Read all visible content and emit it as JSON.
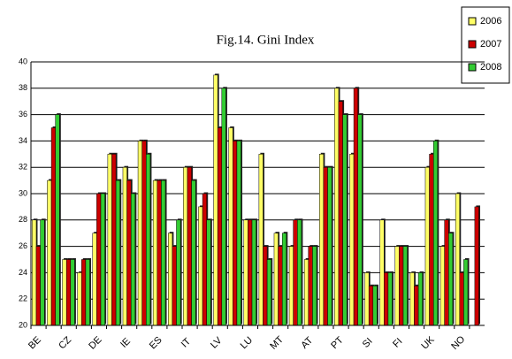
{
  "chart_data": {
    "type": "bar",
    "title": "Fig.14. Gini Index",
    "categories": [
      "BE",
      null,
      "CZ",
      null,
      "DE",
      null,
      "IE",
      null,
      "ES",
      null,
      "IT",
      null,
      "LV",
      null,
      "LU",
      null,
      "MT",
      null,
      "AT",
      null,
      "PT",
      null,
      "SI",
      null,
      "FI",
      null,
      "UK",
      null,
      "NO",
      null
    ],
    "series": [
      {
        "name": "2006",
        "color": "#ffff66",
        "values": [
          28,
          31,
          25,
          24,
          27,
          33,
          32,
          34,
          31,
          27,
          32,
          29,
          39,
          35,
          28,
          33,
          27,
          26,
          25,
          33,
          38,
          33,
          24,
          28,
          26,
          24,
          32,
          26,
          30,
          null
        ]
      },
      {
        "name": "2007",
        "color": "#cc0000",
        "values": [
          26,
          35,
          25,
          25,
          30,
          33,
          31,
          34,
          31,
          26,
          32,
          30,
          35,
          34,
          28,
          26,
          26,
          28,
          26,
          32,
          37,
          38,
          23,
          24,
          26,
          23,
          33,
          28,
          24,
          29
        ]
      },
      {
        "name": "2008",
        "color": "#33cc33",
        "values": [
          28,
          36,
          25,
          25,
          30,
          31,
          30,
          33,
          31,
          28,
          31,
          28,
          38,
          34,
          28,
          25,
          27,
          28,
          26,
          32,
          36,
          36,
          23,
          24,
          26,
          24,
          34,
          27,
          25,
          null
        ]
      }
    ],
    "ylim": [
      20,
      40
    ],
    "yticks": [
      20,
      22,
      24,
      26,
      28,
      30,
      32,
      34,
      36,
      38,
      40
    ],
    "grid": true
  }
}
